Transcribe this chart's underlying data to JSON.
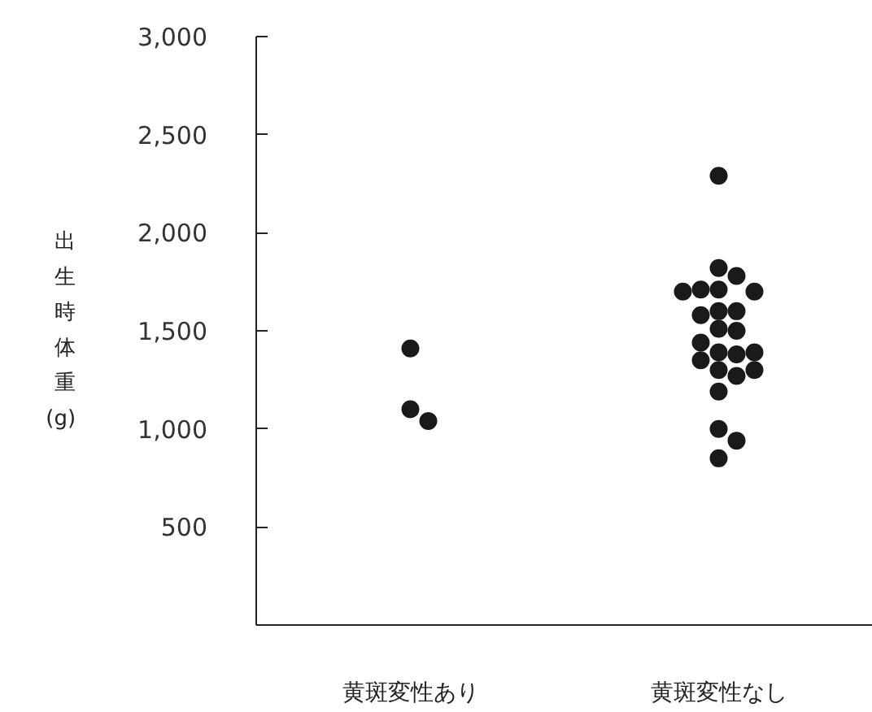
{
  "chart_data": {
    "type": "scatter",
    "ylabel": "出生時体重(g)",
    "categories": [
      "黄斑変性あり",
      "黄斑変性なし"
    ],
    "ylim": [
      0,
      3000
    ],
    "yticks": [
      500,
      {
        "value": 1000,
        "label": "1,000"
      },
      {
        "value": 1500,
        "label": "1,500"
      },
      {
        "value": 2000,
        "label": "2,000"
      },
      {
        "value": 2500,
        "label": "2,500"
      },
      {
        "value": 3000,
        "label": "3,000"
      }
    ],
    "grid": false,
    "marker": "circle",
    "series": [
      {
        "color": "#1a1a1a",
        "x": [
          "黄斑変性あり",
          "黄斑変性あり",
          "黄斑変性あり"
        ],
        "values": [
          1410,
          1100,
          1040
        ]
      },
      {
        "color": "#1a1a1a",
        "x": [
          "黄斑変性なし",
          "黄斑変性なし",
          "黄斑変性なし",
          "黄斑変性なし",
          "黄斑変性なし",
          "黄斑変性なし",
          "黄斑変性なし",
          "黄斑変性なし",
          "黄斑変性なし",
          "黄斑変性なし",
          "黄斑変性なし",
          "黄斑変性なし",
          "黄斑変性なし",
          "黄斑変性なし",
          "黄斑変性なし",
          "黄斑変性なし",
          "黄斑変性なし",
          "黄斑変性なし",
          "黄斑変性なし",
          "黄斑変性なし",
          "黄斑変性なし",
          "黄斑変性なし",
          "黄斑変性なし",
          "黄斑変性なし"
        ],
        "values": [
          2290,
          1820,
          1780,
          1710,
          1710,
          1700,
          1700,
          1600,
          1600,
          1580,
          1510,
          1500,
          1440,
          1390,
          1380,
          1390,
          1350,
          1300,
          1300,
          1270,
          1190,
          1000,
          940,
          850
        ]
      }
    ]
  }
}
